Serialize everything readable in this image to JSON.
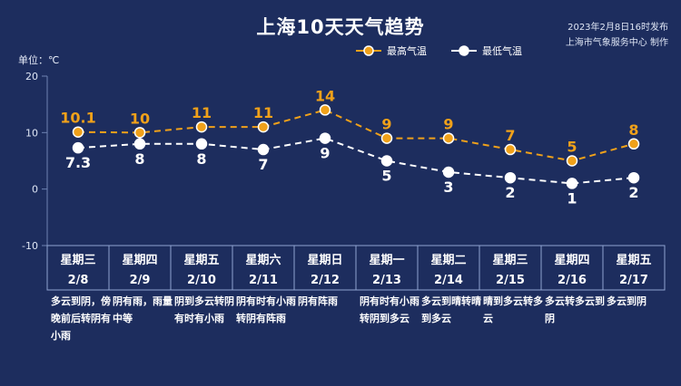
{
  "header": {
    "title": "上海10天天气趋势",
    "publish_time": "2023年2月8日16时发布",
    "publisher": "上海市气象服务中心 制作"
  },
  "unit_label": "单位：℃",
  "colors": {
    "background": "#1d2d5e",
    "high": "#f0a11a",
    "low": "#ffffff",
    "grid": "#6f82b3"
  },
  "chart_data": {
    "type": "line",
    "ylim": [
      -10,
      20
    ],
    "yticks": [
      -10,
      0,
      10,
      20
    ],
    "legend": "top-right",
    "series": [
      {
        "name": "最高气温",
        "values": [
          10.1,
          10,
          11,
          11,
          14,
          9,
          9,
          7,
          5,
          8
        ],
        "labels": [
          "10.1",
          "10",
          "11",
          "11",
          "14",
          "9",
          "9",
          "7",
          "5",
          "8"
        ]
      },
      {
        "name": "最低气温",
        "values": [
          7.3,
          8,
          8,
          7,
          9,
          5,
          3,
          2,
          1,
          2
        ],
        "labels": [
          "7.3",
          "8",
          "8",
          "7",
          "9",
          "5",
          "3",
          "2",
          "1",
          "2"
        ]
      }
    ],
    "days": [
      {
        "weekday": "星期三",
        "date": "2/8",
        "weather": "多云到阴，傍晚前后转阴有小雨"
      },
      {
        "weekday": "星期四",
        "date": "2/9",
        "weather": "阴有雨，雨量中等"
      },
      {
        "weekday": "星期五",
        "date": "2/10",
        "weather": "阴到多云转阴有时有小雨"
      },
      {
        "weekday": "星期六",
        "date": "2/11",
        "weather": "阴有时有小雨转阴有阵雨"
      },
      {
        "weekday": "星期日",
        "date": "2/12",
        "weather": "阴有阵雨"
      },
      {
        "weekday": "星期一",
        "date": "2/13",
        "weather": "阴有时有小雨转阴到多云"
      },
      {
        "weekday": "星期二",
        "date": "2/14",
        "weather": "多云到晴转晴到多云"
      },
      {
        "weekday": "星期三",
        "date": "2/15",
        "weather": "晴到多云转多云"
      },
      {
        "weekday": "星期四",
        "date": "2/16",
        "weather": "多云转多云到阴"
      },
      {
        "weekday": "星期五",
        "date": "2/17",
        "weather": "多云到阴"
      }
    ]
  }
}
